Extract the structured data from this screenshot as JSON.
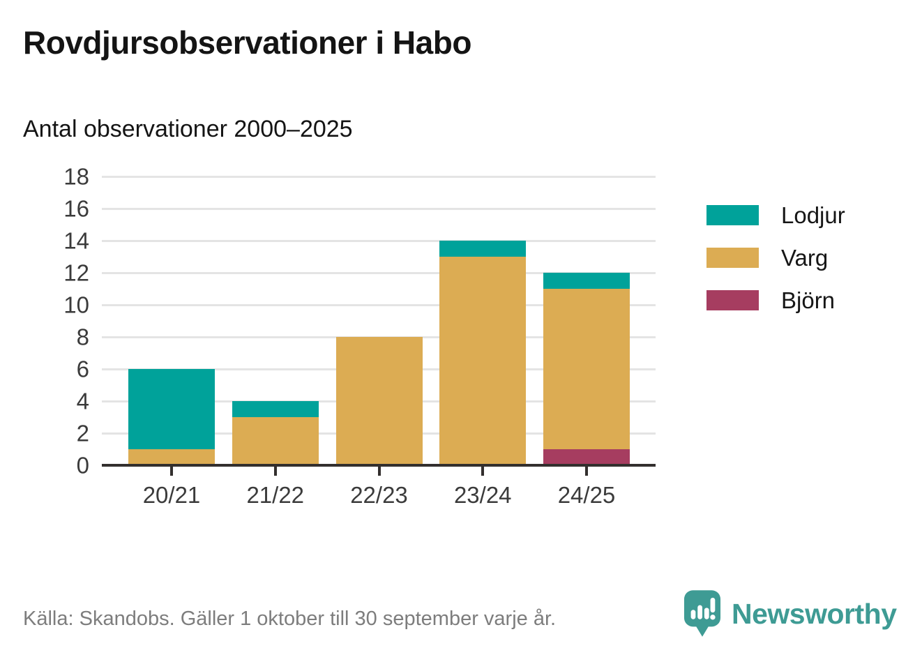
{
  "header": {
    "title": "Rovdjursobservationer i Habo",
    "subtitle": "Antal observationer 2000–2025"
  },
  "chart_data": {
    "type": "bar",
    "stacked": true,
    "title": "Rovdjursobservationer i Habo",
    "subtitle": "Antal observationer 2000–2025",
    "categories": [
      "20/21",
      "21/22",
      "22/23",
      "23/24",
      "24/25"
    ],
    "series": [
      {
        "name": "Lodjur",
        "color": "#00A29A",
        "values": [
          5,
          1,
          0,
          1,
          1
        ]
      },
      {
        "name": "Varg",
        "color": "#DCAC53",
        "values": [
          1,
          3,
          8,
          13,
          10
        ]
      },
      {
        "name": "Björn",
        "color": "#A63D60",
        "values": [
          0,
          0,
          0,
          0,
          1
        ]
      }
    ],
    "stack_order_bottom_to_top": [
      "Björn",
      "Varg",
      "Lodjur"
    ],
    "totals": [
      6,
      4,
      8,
      14,
      12
    ],
    "xlabel": "",
    "ylabel": "",
    "ylim": [
      0,
      18
    ],
    "ytick_step": 2,
    "yticks": [
      0,
      2,
      4,
      6,
      8,
      10,
      12,
      14,
      16,
      18
    ],
    "grid": "horizontal",
    "legend_position": "right"
  },
  "footer": {
    "source": "Källa: Skandobs. Gäller 1 oktober till 30 september varje år.",
    "brand": "Newsworthy"
  },
  "colors": {
    "axis": "#332F2E",
    "grid": "#E4E4E4",
    "text": "#141414",
    "tick_label": "#3B3B3B",
    "source_text": "#7D7D7D",
    "brand_teal": "#3E9B94"
  }
}
